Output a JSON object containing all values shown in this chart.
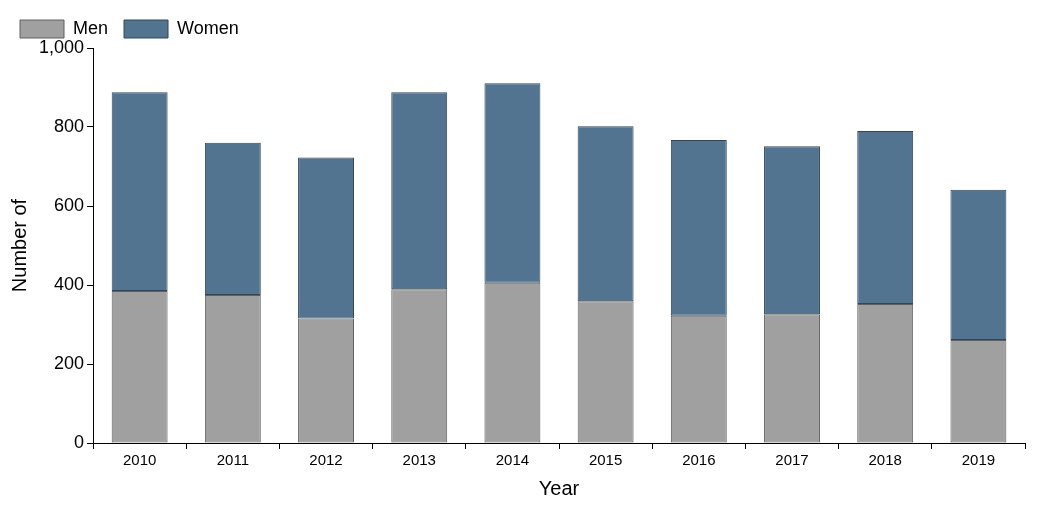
{
  "chart_data": {
    "type": "bar",
    "stacked": true,
    "xlabel": "Year",
    "ylabel": "Number of",
    "categories": [
      "2010",
      "2011",
      "2012",
      "2013",
      "2014",
      "2015",
      "2016",
      "2017",
      "2018",
      "2019"
    ],
    "series": [
      {
        "name": "Men",
        "color": "#a0a0a0",
        "values": [
          385,
          375,
          315,
          389,
          406,
          359,
          322,
          326,
          352,
          261
        ]
      },
      {
        "name": "Women",
        "color": "#527491",
        "values": [
          503,
          385,
          408,
          499,
          505,
          443,
          445,
          425,
          438,
          380
        ]
      }
    ],
    "ylim": [
      0,
      1000
    ],
    "yticks": [
      0,
      200,
      400,
      600,
      800,
      {
        "value": 1000,
        "label": "1,000"
      }
    ],
    "grid": false,
    "legend": "top left"
  }
}
